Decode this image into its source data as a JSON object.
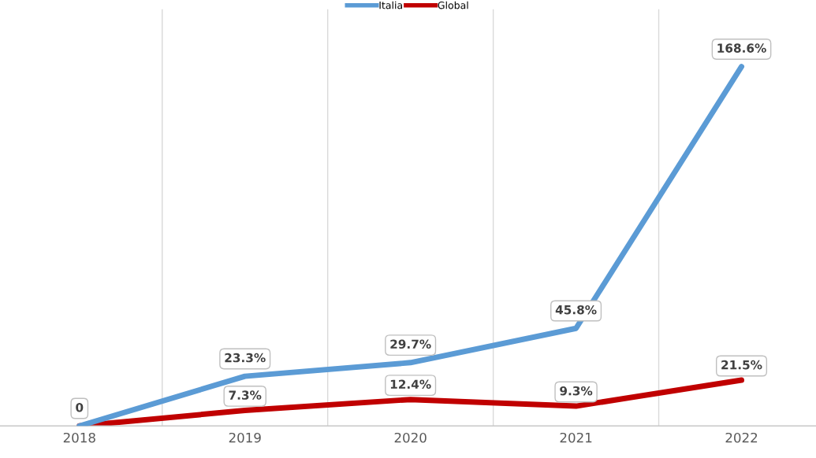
{
  "chart_data": {
    "type": "line",
    "categories": [
      "2018",
      "2019",
      "2020",
      "2021",
      "2022"
    ],
    "series": [
      {
        "name": "Italia",
        "color": "#5b9bd5",
        "values": [
          0,
          23.3,
          29.7,
          45.8,
          168.6
        ],
        "value_labels": [
          "0",
          "23.3%",
          "29.7%",
          "45.8%",
          "168.6%"
        ]
      },
      {
        "name": "Global",
        "color": "#c00000",
        "values": [
          0,
          7.3,
          12.4,
          9.3,
          21.5
        ],
        "value_labels": [
          null,
          "7.3%",
          "12.4%",
          "9.3%",
          "21.5%"
        ]
      }
    ],
    "grid": "x",
    "legend": "top",
    "line_style": "solid"
  }
}
